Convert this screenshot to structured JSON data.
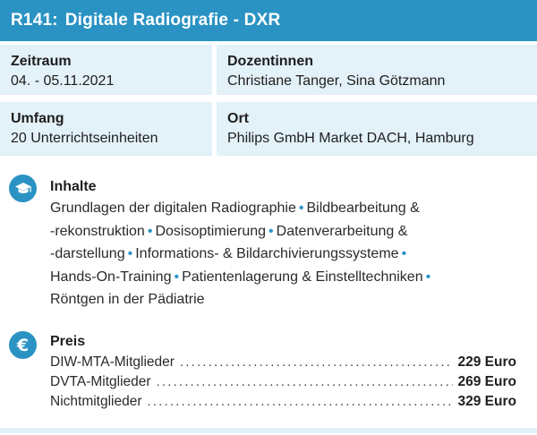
{
  "header": {
    "code": "R141:",
    "title": "Digitale Radiografie - DXR"
  },
  "info": {
    "zeitraum": {
      "label": "Zeitraum",
      "value": "04. - 05.11.2021"
    },
    "dozentinnen": {
      "label": "Dozentinnen",
      "value": "Christiane Tanger, Sina Götzmann"
    },
    "umfang": {
      "label": "Umfang",
      "value": "20 Unterrichtseinheiten"
    },
    "ort": {
      "label": "Ort",
      "value": "Philips GmbH Market DACH, Hamburg"
    }
  },
  "inhalte": {
    "title": "Inhalte",
    "icon": "graduation-cap-icon",
    "lines": [
      [
        "Grundlagen der digitalen Radiographie",
        "Bildbearbeitung &"
      ],
      [
        "-rekonstruktion",
        "Dosisoptimierung",
        "Datenverarbeitung &"
      ],
      [
        "-darstellung",
        "Informations- & Bildarchivierungssysteme",
        ""
      ],
      [
        "Hands-On-Training",
        "Patientenlagerung & Einstelltechniken",
        ""
      ],
      [
        "Röntgen in der Pädiatrie"
      ]
    ],
    "separator": "•"
  },
  "preis": {
    "title": "Preis",
    "icon": "euro-icon",
    "icon_glyph": "€",
    "rows": [
      {
        "name": "DIW-MTA-Mitglieder",
        "value": "229 Euro"
      },
      {
        "name": "DVTA-Mitglieder",
        "value": "269 Euro"
      },
      {
        "name": "Nichtmitglieder",
        "value": "329 Euro"
      }
    ]
  },
  "colors": {
    "accent": "#2a93c3",
    "box_bg": "#e3f1f8"
  }
}
